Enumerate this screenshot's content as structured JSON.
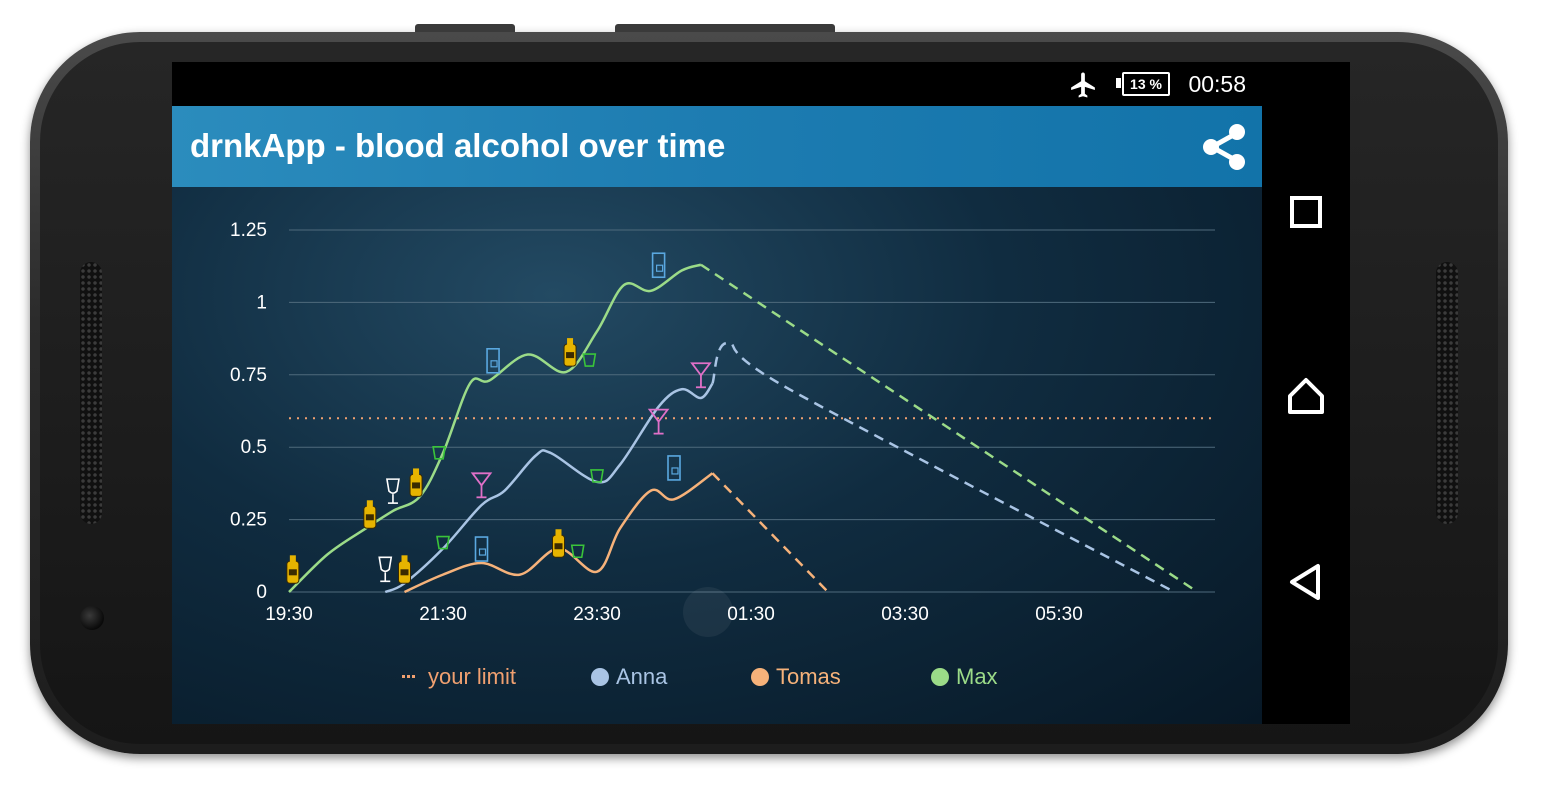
{
  "status": {
    "time": "00:58",
    "battery": "13 %"
  },
  "app": {
    "title": "drnkApp - blood alcohol over time"
  },
  "legend": [
    {
      "label": "your limit",
      "color": "#f0a070",
      "style": "dotted"
    },
    {
      "label": "Anna",
      "color": "#a9c4e4"
    },
    {
      "label": "Tomas",
      "color": "#f6b27a"
    },
    {
      "label": "Max",
      "color": "#9bdb88"
    }
  ],
  "chart_data": {
    "type": "line",
    "xlabel": "",
    "ylabel": "",
    "x_ticks": [
      "19:30",
      "21:30",
      "23:30",
      "01:30",
      "03:30",
      "05:30"
    ],
    "y_ticks": [
      "0",
      "0.25",
      "0.5",
      "0.75",
      "1",
      "1.25"
    ],
    "xlim_hours": [
      19.5,
      31.5
    ],
    "ylim": [
      0,
      1.25
    ],
    "limit": {
      "name": "your limit",
      "value": 0.6
    },
    "series": [
      {
        "name": "Max",
        "color": "#9bdb88",
        "solid": [
          [
            19.5,
            0
          ],
          [
            20.0,
            0.13
          ],
          [
            20.5,
            0.22
          ],
          [
            20.85,
            0.28
          ],
          [
            21.2,
            0.33
          ],
          [
            21.5,
            0.48
          ],
          [
            21.85,
            0.72
          ],
          [
            22.1,
            0.73
          ],
          [
            22.6,
            0.82
          ],
          [
            23.1,
            0.76
          ],
          [
            23.5,
            0.9
          ],
          [
            23.85,
            1.06
          ],
          [
            24.2,
            1.04
          ],
          [
            24.6,
            1.11
          ],
          [
            24.85,
            1.13
          ]
        ],
        "projected": [
          [
            24.85,
            1.13
          ],
          [
            31.3,
            0.0
          ]
        ],
        "markers": [
          {
            "t": 20.55,
            "v": 0.22,
            "icon": "beer"
          },
          {
            "t": 21.15,
            "v": 0.33,
            "icon": "beer"
          },
          {
            "t": 21.45,
            "v": 0.46,
            "icon": "shot"
          },
          {
            "t": 22.15,
            "v": 0.75,
            "icon": "cocktail"
          },
          {
            "t": 23.15,
            "v": 0.78,
            "icon": "beer"
          },
          {
            "t": 23.4,
            "v": 0.78,
            "icon": "shot"
          },
          {
            "t": 24.3,
            "v": 1.08,
            "icon": "cocktail"
          },
          {
            "t": 19.55,
            "v": 0.03,
            "icon": "beer"
          },
          {
            "t": 20.85,
            "v": 0.3,
            "icon": "wine"
          }
        ]
      },
      {
        "name": "Anna",
        "color": "#a9c4e4",
        "solid": [
          [
            20.75,
            0
          ],
          [
            21.0,
            0.03
          ],
          [
            21.5,
            0.15
          ],
          [
            22.0,
            0.3
          ],
          [
            22.3,
            0.35
          ],
          [
            22.7,
            0.47
          ],
          [
            22.9,
            0.48
          ],
          [
            23.5,
            0.38
          ],
          [
            23.8,
            0.44
          ],
          [
            24.3,
            0.64
          ],
          [
            24.6,
            0.7
          ],
          [
            24.85,
            0.67
          ],
          [
            25.0,
            0.72
          ]
        ],
        "projected": [
          [
            25.0,
            0.72
          ],
          [
            25.2,
            0.86
          ],
          [
            26.0,
            0.7
          ],
          [
            31.0,
            0.0
          ]
        ],
        "markers": [
          {
            "t": 20.75,
            "v": 0.03,
            "icon": "wine"
          },
          {
            "t": 21.5,
            "v": 0.15,
            "icon": "shot"
          },
          {
            "t": 22.0,
            "v": 0.32,
            "icon": "martini"
          },
          {
            "t": 23.5,
            "v": 0.38,
            "icon": "shot"
          },
          {
            "t": 24.3,
            "v": 0.54,
            "icon": "martini"
          },
          {
            "t": 24.85,
            "v": 0.7,
            "icon": "martini"
          }
        ]
      },
      {
        "name": "Tomas",
        "color": "#f6b27a",
        "solid": [
          [
            21.0,
            0
          ],
          [
            21.5,
            0.06
          ],
          [
            22.0,
            0.1
          ],
          [
            22.5,
            0.06
          ],
          [
            23.0,
            0.15
          ],
          [
            23.5,
            0.07
          ],
          [
            23.8,
            0.22
          ],
          [
            24.2,
            0.35
          ],
          [
            24.5,
            0.32
          ],
          [
            25.0,
            0.41
          ]
        ],
        "projected": [
          [
            25.0,
            0.41
          ],
          [
            26.5,
            0.0
          ]
        ],
        "markers": [
          {
            "t": 21.0,
            "v": 0.03,
            "icon": "beer"
          },
          {
            "t": 22.0,
            "v": 0.1,
            "icon": "cocktail"
          },
          {
            "t": 23.0,
            "v": 0.12,
            "icon": "beer"
          },
          {
            "t": 23.25,
            "v": 0.12,
            "icon": "shot"
          },
          {
            "t": 24.5,
            "v": 0.38,
            "icon": "cocktail"
          }
        ]
      }
    ]
  }
}
